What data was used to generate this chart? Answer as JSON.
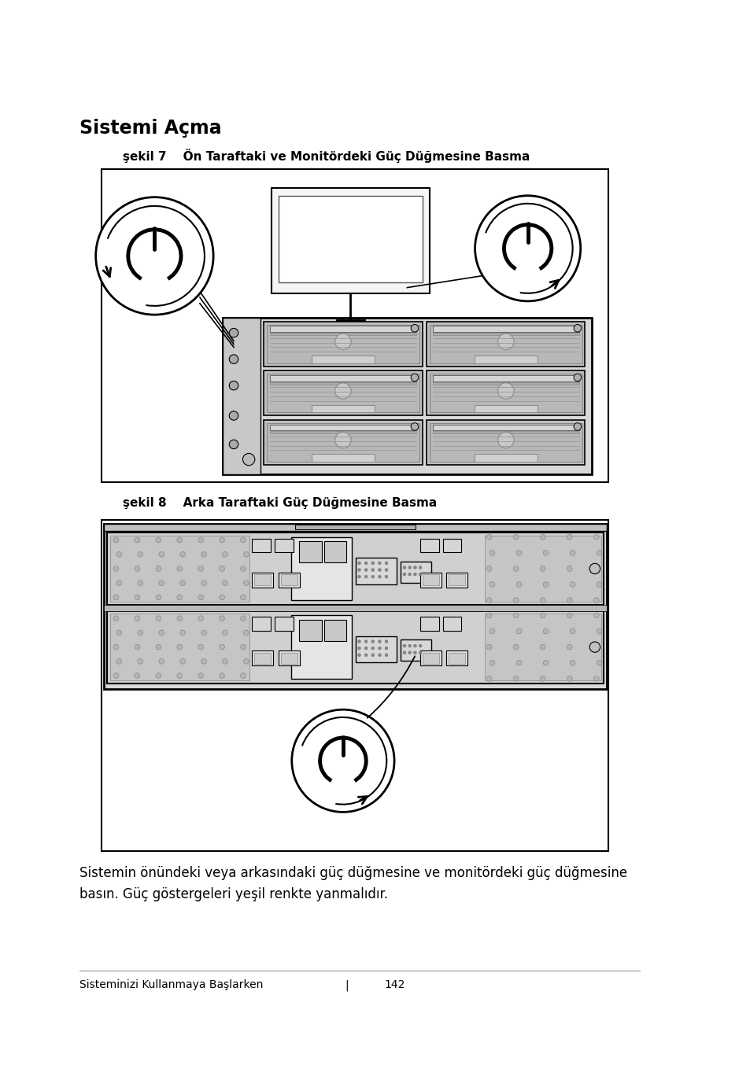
{
  "title": "Sistemi Açma",
  "fig1_caption": "şekil 7    Ön Taraftaki ve Monitördeki Güç Düğmesine Basma",
  "fig2_caption": "şekil 8    Arka Taraftaki Güç Düğmesine Basma",
  "body_text": "Sistemin önündeki veya arkasındaki güç düğmesine ve monitördeki güç düğmesine\nbasın. Güç göstergeleri yeşil renkte yanmalıdır.",
  "footer_text": "Sisteminizi Kullanmaya Başlarken",
  "footer_page": "142",
  "bg_color": "#ffffff",
  "text_color": "#000000"
}
